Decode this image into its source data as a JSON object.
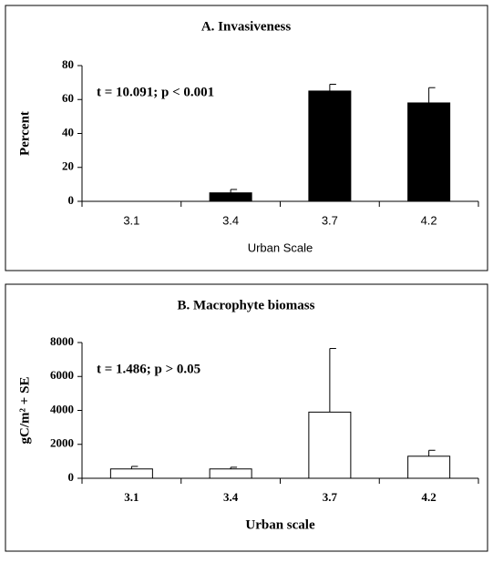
{
  "chart_data": [
    {
      "type": "bar",
      "title": "A. Invasiveness",
      "annotation": "t = 10.091; p < 0.001",
      "categories": [
        "3.1",
        "3.4",
        "3.7",
        "4.2"
      ],
      "values": [
        0,
        5,
        65,
        58
      ],
      "errors": [
        0,
        2,
        4,
        9
      ],
      "color": "#000000",
      "ylim": [
        0,
        80
      ],
      "yticks": [
        0,
        20,
        40,
        60,
        80
      ],
      "ylabel": "Percent",
      "xlabel": "Urban Scale"
    },
    {
      "type": "bar",
      "title": "B. Macrophyte biomass",
      "annotation": "t = 1.486; p > 0.05",
      "categories": [
        "3.1",
        "3.4",
        "3.7",
        "4.2"
      ],
      "values": [
        550,
        550,
        3900,
        1300
      ],
      "errors": [
        150,
        100,
        3750,
        350
      ],
      "color": "#ffffff",
      "ylim": [
        0,
        8000
      ],
      "yticks": [
        0,
        2000,
        4000,
        6000,
        8000
      ],
      "ylabel": "gC/m² + SE",
      "xlabel": "Urban scale"
    }
  ]
}
